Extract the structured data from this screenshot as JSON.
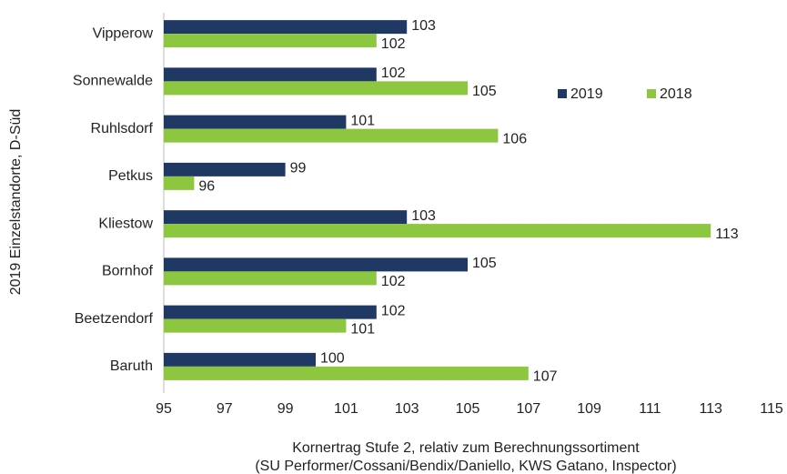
{
  "chart_data": {
    "type": "hbar",
    "xlabel": [
      "Kornertrag Stufe 2, relativ zum Berechnungssortiment",
      "(SU Performer/Cossani/Bendix/Daniello, KWS Gatano, Inspector)"
    ],
    "ylabel": "2019 Einzelstandorte, D-Süd",
    "categories": [
      "Vipperow",
      "Sonnewalde",
      "Ruhlsdorf",
      "Petkus",
      "Kliestow",
      "Bornhof",
      "Beetzendorf",
      "Baruth"
    ],
    "series": [
      {
        "name": "2019",
        "color": "#1f3864",
        "values": [
          103,
          102,
          101,
          99,
          103,
          105,
          102,
          100
        ]
      },
      {
        "name": "2018",
        "color": "#8dc63f",
        "values": [
          102,
          105,
          106,
          96,
          113,
          102,
          101,
          107
        ]
      }
    ],
    "xlim": [
      95,
      115
    ],
    "xticks": [
      95,
      97,
      99,
      101,
      103,
      105,
      107,
      109,
      111,
      113,
      115
    ],
    "grid": false
  }
}
